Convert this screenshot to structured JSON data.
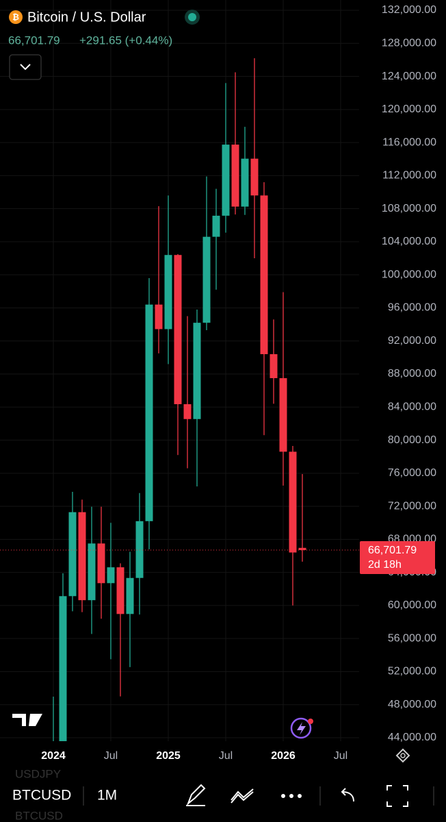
{
  "header": {
    "title": "Bitcoin / U.S. Dollar",
    "price": "66,701.79",
    "change": "+291.65 (+0.44%)"
  },
  "chart_data": {
    "type": "candlestick",
    "categories": [
      "2024",
      null,
      null,
      null,
      null,
      null,
      "Jul",
      null,
      null,
      null,
      null,
      null,
      "2025",
      null,
      null,
      null,
      null,
      null,
      "Jul",
      null,
      null,
      null,
      null,
      null,
      "2026",
      null,
      null,
      null,
      null,
      null,
      "Jul"
    ],
    "open": [
      42280,
      42580,
      61130,
      71290,
      60640,
      67500,
      62700,
      64620,
      58970,
      63330,
      70200,
      96400,
      93430,
      102400,
      84350,
      82550,
      94200,
      104600,
      107150,
      115750,
      108250,
      114050,
      109600,
      90400,
      87500,
      78600,
      66970,
      null,
      null,
      null,
      null
    ],
    "high": [
      48970,
      63900,
      73750,
      72800,
      71950,
      71950,
      70000,
      65100,
      66500,
      73600,
      99600,
      108300,
      109600,
      102500,
      95000,
      95800,
      111900,
      110400,
      123200,
      124500,
      117900,
      126200,
      111200,
      94600,
      97900,
      79300,
      75900,
      null,
      null,
      null,
      null
    ],
    "low": [
      38550,
      41880,
      59300,
      59200,
      56550,
      58400,
      53500,
      49000,
      52550,
      58900,
      66800,
      90500,
      89200,
      78200,
      76600,
      74400,
      93300,
      98200,
      105100,
      107300,
      107250,
      102000,
      80600,
      84400,
      74500,
      60000,
      65300,
      null,
      null,
      null,
      null
    ],
    "close": [
      42580,
      61130,
      71290,
      60640,
      67500,
      62700,
      64620,
      58970,
      63330,
      70200,
      96400,
      93430,
      102400,
      84350,
      82550,
      94200,
      104600,
      107150,
      115750,
      108250,
      114050,
      109600,
      90400,
      87500,
      78600,
      66410,
      66701.79,
      null,
      null,
      null,
      null
    ],
    "up_color": "#22ab94",
    "down_color": "#f23645",
    "last_price_label": "66,701.79",
    "countdown": "2d 18h",
    "ylim": [
      44000,
      132000
    ],
    "yticks": [
      {
        "value": 44000,
        "label": "44,000.00"
      },
      {
        "value": 48000,
        "label": "48,000.00"
      },
      {
        "value": 52000,
        "label": "52,000.00"
      },
      {
        "value": 56000,
        "label": "56,000.00"
      },
      {
        "value": 60000,
        "label": "60,000.00"
      },
      {
        "value": 64000,
        "label": "64,000.00"
      },
      {
        "value": 68000,
        "label": "68,000.00"
      },
      {
        "value": 72000,
        "label": "72,000.00"
      },
      {
        "value": 76000,
        "label": "76,000.00"
      },
      {
        "value": 80000,
        "label": "80,000.00"
      },
      {
        "value": 84000,
        "label": "84,000.00"
      },
      {
        "value": 88000,
        "label": "88,000.00"
      },
      {
        "value": 92000,
        "label": "92,000.00"
      },
      {
        "value": 96000,
        "label": "96,000.00"
      },
      {
        "value": 100000,
        "label": "100,000.00"
      },
      {
        "value": 104000,
        "label": "104,000.00"
      },
      {
        "value": 108000,
        "label": "108,000.00"
      },
      {
        "value": 112000,
        "label": "112,000.00"
      },
      {
        "value": 116000,
        "label": "116,000.00"
      },
      {
        "value": 120000,
        "label": "120,000.00"
      },
      {
        "value": 124000,
        "label": "124,000.00"
      },
      {
        "value": 128000,
        "label": "128,000.00"
      },
      {
        "value": 132000,
        "label": "132,000.00"
      }
    ],
    "grid": true
  },
  "toolbar": {
    "symbol": "BTCUSD",
    "interval": "1M",
    "ghost_top": "USDJPY",
    "ghost_bottom": "BTCUSD"
  }
}
